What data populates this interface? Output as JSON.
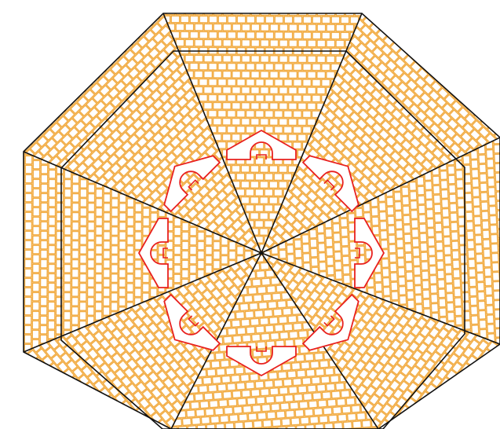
{
  "colors": {
    "background": "#ffffff",
    "brick_stroke": "#f0a028",
    "outline": "#111111",
    "arrow_stroke": "#e8201e",
    "arrow_fill": "#ffffff"
  },
  "layout_desc": {
    "pattern": "brick",
    "sectors": 8,
    "arrows": 8,
    "arrow_direction": "outward"
  }
}
